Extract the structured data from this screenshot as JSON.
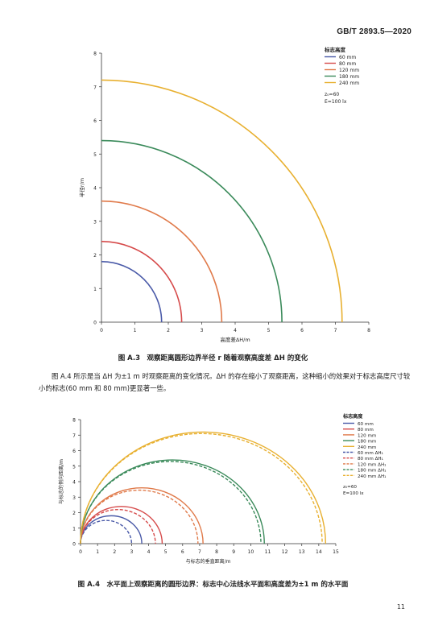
{
  "header": {
    "standard_no": "GB/T 2893.5—2020"
  },
  "text": {
    "caption1": "图 A.3　观察距离圆形边界半径 r 随着观察高度差 ΔH 的变化",
    "paragraph": "图 A.4 所示是当 ΔH 为±1 m 时观察距离的变化情况。ΔH 的存在缩小了观察距离，这种缩小的效果对于标志高度尺寸较小的标志(60 mm 和 80 mm)更显著一些。",
    "caption2": "图 A.4　水平面上观察距离的圆形边界：标志中心法线水平面和高度差为±1 m 的水平面",
    "page_number": "11"
  },
  "chart_data": [
    {
      "type": "line",
      "xlabel": "高度差ΔH/m",
      "ylabel": "半径r/m",
      "xlim": [
        0,
        8
      ],
      "ylim": [
        0,
        8
      ],
      "xticks": [
        "0",
        "1",
        "2",
        "3",
        "4",
        "5",
        "6",
        "7",
        "8"
      ],
      "yticks": [
        "0",
        "1",
        "2",
        "3",
        "4",
        "5",
        "6",
        "7",
        "8"
      ],
      "legend_title": "标志高度",
      "legend_position": "top-right",
      "params": [
        "z₀=60",
        "E=100 lx"
      ],
      "grid": false,
      "series": [
        {
          "name": "60 mm",
          "radius": 1.8,
          "color": "#4a5aa8"
        },
        {
          "name": "80 mm",
          "radius": 2.4,
          "color": "#d64a4a"
        },
        {
          "name": "120 mm",
          "radius": 3.6,
          "color": "#e07a4a"
        },
        {
          "name": "180 mm",
          "radius": 5.4,
          "color": "#3a8a5a"
        },
        {
          "name": "240 mm",
          "radius": 7.2,
          "color": "#e8b030"
        }
      ]
    },
    {
      "type": "line",
      "xlabel": "与标志的垂直距离/m",
      "ylabel": "与标志的侧向距离/m",
      "xlim": [
        0,
        15
      ],
      "ylim": [
        0,
        8
      ],
      "xticks": [
        "0",
        "1",
        "2",
        "3",
        "4",
        "5",
        "6",
        "7",
        "8",
        "9",
        "10",
        "11",
        "12",
        "13",
        "14",
        "15"
      ],
      "yticks": [
        "0",
        "1",
        "2",
        "3",
        "4",
        "5",
        "6",
        "7",
        "8"
      ],
      "legend_title": "标志高度",
      "legend_position": "top-right",
      "params": [
        "z₀=60",
        "E=100 lx"
      ],
      "grid": false,
      "series": [
        {
          "name": "60 mm",
          "style": "solid",
          "radius": 1.8,
          "color": "#4a5aa8"
        },
        {
          "name": "80 mm",
          "style": "solid",
          "radius": 2.4,
          "color": "#d64a4a"
        },
        {
          "name": "120 mm",
          "style": "solid",
          "radius": 3.6,
          "color": "#e07a4a"
        },
        {
          "name": "180 mm",
          "style": "solid",
          "radius": 5.4,
          "color": "#3a8a5a"
        },
        {
          "name": "240 mm",
          "style": "solid",
          "radius": 7.2,
          "color": "#e8b030"
        },
        {
          "name": "60 mm ΔH₁",
          "style": "dashed",
          "radius": 1.5,
          "color": "#4a5aa8"
        },
        {
          "name": "80 mm ΔH₁",
          "style": "dashed",
          "radius": 2.2,
          "color": "#d64a4a"
        },
        {
          "name": "120 mm ΔH₁",
          "style": "dashed",
          "radius": 3.45,
          "color": "#e07a4a"
        },
        {
          "name": "180 mm ΔH₁",
          "style": "dashed",
          "radius": 5.3,
          "color": "#3a8a5a"
        },
        {
          "name": "240 mm ΔH₁",
          "style": "dashed",
          "radius": 7.1,
          "color": "#e8b030"
        }
      ]
    }
  ]
}
